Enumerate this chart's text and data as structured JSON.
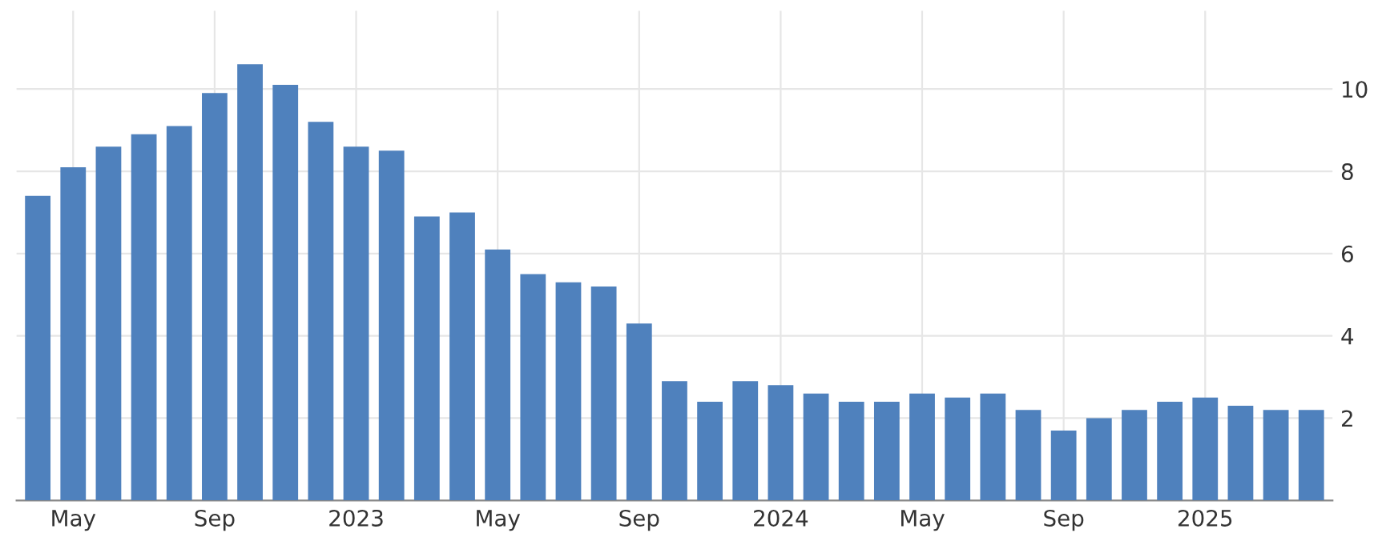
{
  "chart_data": {
    "type": "bar",
    "categories": [
      null,
      "May",
      null,
      null,
      null,
      "Sep",
      null,
      null,
      null,
      "2023",
      null,
      null,
      null,
      "May",
      null,
      null,
      null,
      "Sep",
      null,
      null,
      null,
      "2024",
      null,
      null,
      null,
      "May",
      null,
      null,
      null,
      "Sep",
      null,
      null,
      null,
      "2025",
      null,
      null,
      null
    ],
    "values": [
      7.4,
      8.1,
      8.6,
      8.9,
      9.1,
      9.9,
      10.6,
      10.1,
      9.2,
      8.6,
      8.5,
      6.9,
      7.0,
      6.1,
      5.5,
      5.3,
      5.2,
      4.3,
      2.9,
      2.4,
      2.9,
      2.8,
      2.6,
      2.4,
      2.4,
      2.6,
      2.5,
      2.6,
      2.2,
      1.7,
      2.0,
      2.2,
      2.4,
      2.5,
      2.3,
      2.2,
      2.2
    ],
    "color": "#4f81bd",
    "ylim": [
      0,
      11.9
    ],
    "yticks": [
      2,
      4,
      6,
      8,
      10
    ],
    "grid": true,
    "legend": false
  }
}
